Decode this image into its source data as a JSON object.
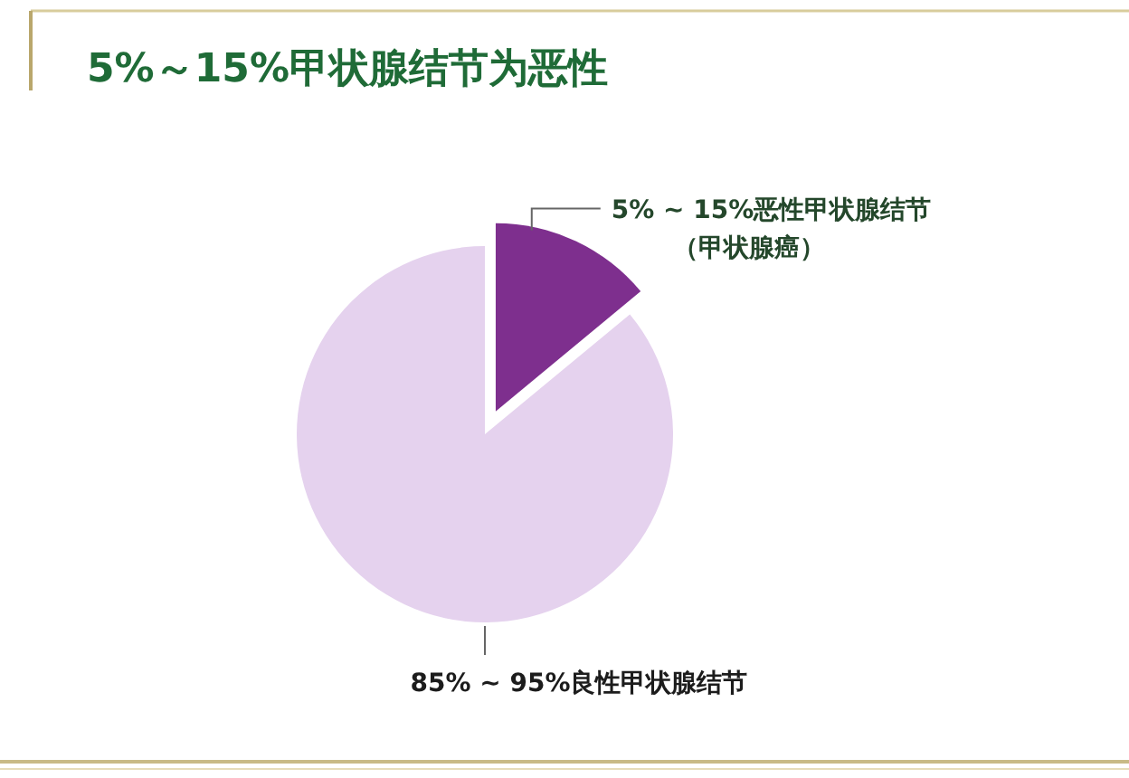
{
  "chart_data": {
    "type": "pie",
    "title": "5%～15%甲状腺结节为恶性",
    "categories": [
      "5% ~ 15%恶性甲状腺结节（甲状腺癌）",
      "85% ~ 95%良性甲状腺结节"
    ],
    "values": [
      14,
      86
    ],
    "colors": [
      "#7e2f8e",
      "#e5d2ee"
    ]
  }
}
